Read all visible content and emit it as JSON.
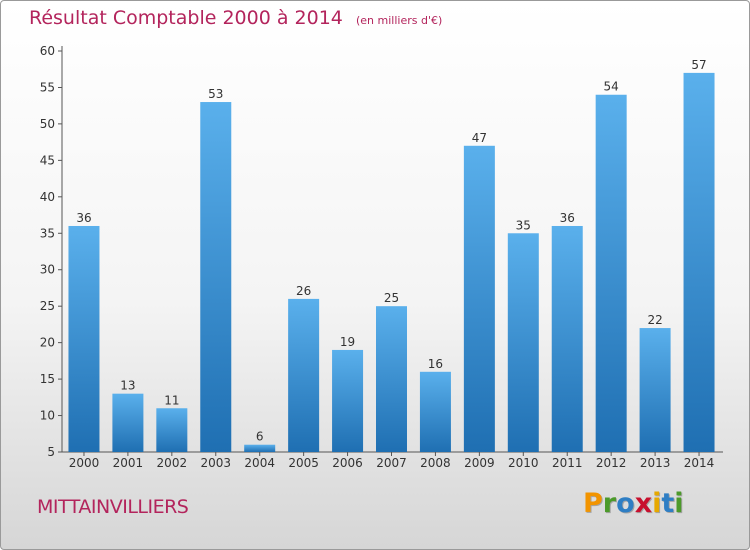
{
  "title": "Résultat Comptable 2000 à 2014",
  "unit_label": "(en milliers d'€)",
  "commune": "MITTAINVILLIERS",
  "logo": {
    "letters": [
      "P",
      "r",
      "o",
      "x",
      "i",
      "t",
      "i"
    ],
    "colors": [
      "#f29400",
      "#4c9a2a",
      "#2e7ec4",
      "#c8102e",
      "#e6a800",
      "#2e7ec4",
      "#4c9a2a"
    ]
  },
  "colors": {
    "title": "#b3245c",
    "bar_top": "#5ab0ec",
    "bar_bottom": "#1f6fb2"
  },
  "chart_data": {
    "type": "bar",
    "categories": [
      "2000",
      "2001",
      "2002",
      "2003",
      "2004",
      "2005",
      "2006",
      "2007",
      "2008",
      "2009",
      "2010",
      "2011",
      "2012",
      "2013",
      "2014"
    ],
    "values": [
      36,
      13,
      11,
      53,
      6,
      26,
      19,
      25,
      16,
      47,
      35,
      36,
      54,
      22,
      57
    ],
    "ylim": [
      5,
      60
    ],
    "yticks": [
      5,
      10,
      15,
      20,
      25,
      30,
      35,
      40,
      45,
      50,
      55,
      60
    ],
    "grid": false,
    "data_labels": true
  }
}
